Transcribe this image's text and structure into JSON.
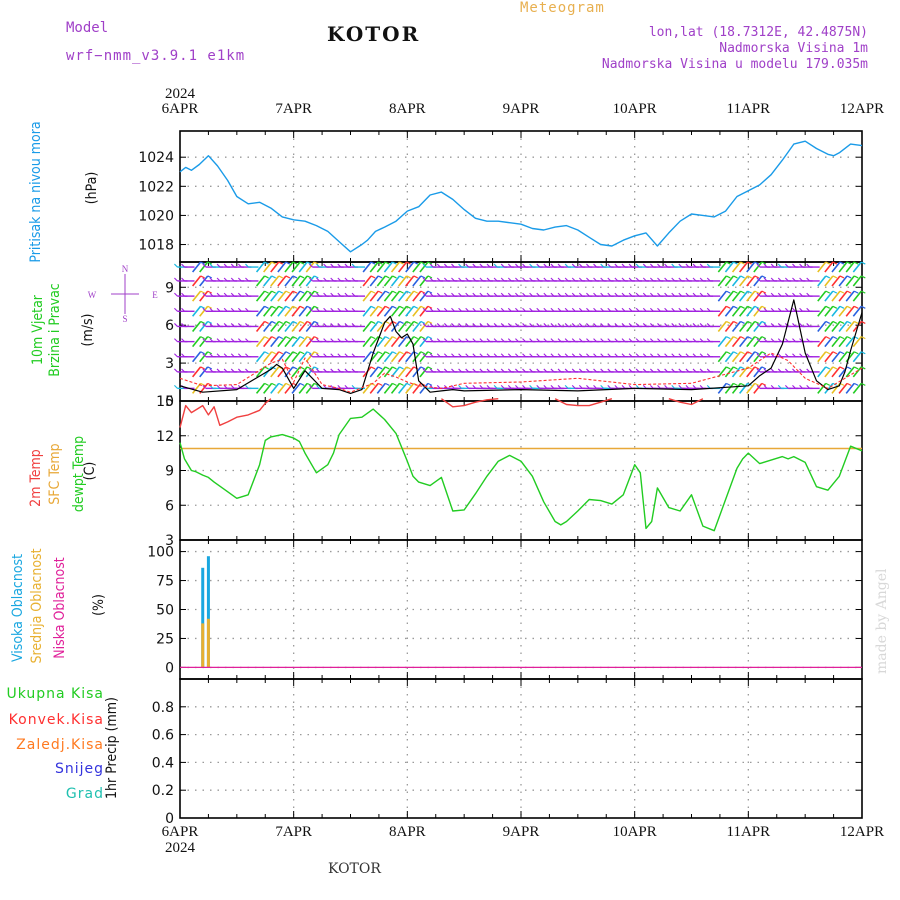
{
  "header": {
    "model_label": "Model",
    "model_name": "wrf−nmm_v3.9.1 e1km",
    "station": "KOTOR",
    "product": "Meteogram",
    "lonlat": "lon,lat (18.7312E, 42.4875N)",
    "elevation": "Nadmorska Visina 1m",
    "model_elevation": "Nadmorska Visina u modelu 179.035m"
  },
  "footer": {
    "station": "KOTOR",
    "credit": "made by Angel"
  },
  "colors": {
    "pressure": "#1a9be8",
    "wind_speed": "#000000",
    "gust": "#ff3030",
    "temp_2m": "#f04040",
    "temp_sfc": "#e8a838",
    "dewpoint": "#22cc22",
    "cloud_high": "#1aa7e0",
    "cloud_mid": "#e8b030",
    "cloud_low": "#e0209a",
    "precip_total": "#22cc22",
    "precip_conv": "#ff3030",
    "precip_frozen": "#ff7a20",
    "snow": "#3333dd",
    "graupel": "#20c0b0",
    "text_purple": "#a040c8",
    "text_orange": "#e8b050"
  },
  "chart_data": [
    {
      "type": "line",
      "panel": "pressure",
      "title": "",
      "ylabel": "(hPa)",
      "side_label": "Pritisak na nivou mora",
      "x_year": "2024",
      "x_ticks": [
        "6APR",
        "7APR",
        "8APR",
        "9APR",
        "10APR",
        "11APR",
        "12APR"
      ],
      "xlim_days": [
        0,
        6
      ],
      "ylim": [
        1016.8,
        1025.8
      ],
      "y_ticks": [
        "1018",
        "1020",
        "1022",
        "1024"
      ],
      "series": [
        {
          "x": [
            0,
            0.05,
            0.1,
            0.17,
            0.25,
            0.33,
            0.42,
            0.5,
            0.6,
            0.7,
            0.8,
            0.9,
            1.0,
            1.1,
            1.2,
            1.3,
            1.4,
            1.5,
            1.6,
            1.65,
            1.72,
            1.8,
            1.9,
            2.0,
            2.1,
            2.2,
            2.3,
            2.4,
            2.5,
            2.6,
            2.7,
            2.8,
            2.9,
            3.0,
            3.1,
            3.2,
            3.3,
            3.4,
            3.5,
            3.6,
            3.7,
            3.8,
            3.9,
            4.0,
            4.1,
            4.2,
            4.3,
            4.4,
            4.5,
            4.6,
            4.7,
            4.8,
            4.9,
            5.0,
            5.1,
            5.2,
            5.3,
            5.4,
            5.5,
            5.6,
            5.7,
            5.75,
            5.8,
            5.9,
            6.0
          ],
          "y": [
            1023.0,
            1023.3,
            1023.1,
            1023.5,
            1024.1,
            1023.4,
            1022.4,
            1021.3,
            1020.8,
            1020.9,
            1020.5,
            1019.9,
            1019.7,
            1019.6,
            1019.3,
            1018.9,
            1018.2,
            1017.5,
            1018.0,
            1018.3,
            1018.9,
            1019.2,
            1019.6,
            1020.3,
            1020.6,
            1021.4,
            1021.6,
            1021.1,
            1020.4,
            1019.8,
            1019.6,
            1019.6,
            1019.5,
            1019.4,
            1019.1,
            1019.0,
            1019.2,
            1019.3,
            1019.0,
            1018.5,
            1018.0,
            1017.9,
            1018.3,
            1018.6,
            1018.8,
            1017.9,
            1018.8,
            1019.6,
            1020.1,
            1020.0,
            1019.9,
            1020.3,
            1021.3,
            1021.7,
            1022.1,
            1022.8,
            1023.8,
            1024.9,
            1025.1,
            1024.6,
            1024.2,
            1024.1,
            1024.3,
            1024.9,
            1024.8
          ]
        }
      ]
    },
    {
      "type": "line",
      "panel": "wind",
      "ylabel": "(m/s)",
      "side_label_1": "10m Vjetar",
      "side_label_2": "Brzina i Pravac",
      "compass": {
        "n": "N",
        "s": "S",
        "e": "E",
        "w": "W"
      },
      "ylim": [
        0,
        11
      ],
      "y_ticks": [
        "0",
        "3",
        "6",
        "9"
      ],
      "series": [
        {
          "name": "speed",
          "x": [
            0,
            0.2,
            0.5,
            0.8,
            0.85,
            0.9,
            1.0,
            1.1,
            1.25,
            1.4,
            1.5,
            1.6,
            1.7,
            1.8,
            1.85,
            1.9,
            1.95,
            2.0,
            2.05,
            2.1,
            2.2,
            2.3,
            2.4,
            2.5,
            3.0,
            3.5,
            4.0,
            4.5,
            5.0,
            5.1,
            5.2,
            5.3,
            5.4,
            5.5,
            5.6,
            5.7,
            5.8,
            5.85,
            5.9,
            6.0
          ],
          "y": [
            1.2,
            0.7,
            0.9,
            2.5,
            2.9,
            2.6,
            1.0,
            2.4,
            1.0,
            0.9,
            0.6,
            0.9,
            3.8,
            6.2,
            6.7,
            5.5,
            5.0,
            5.3,
            4.5,
            1.6,
            0.7,
            0.8,
            0.9,
            0.8,
            0.9,
            0.8,
            1.0,
            0.9,
            1.2,
            2.0,
            2.6,
            4.5,
            8.0,
            3.8,
            1.6,
            0.9,
            1.2,
            2.3,
            4.0,
            7.0
          ]
        },
        {
          "name": "gust",
          "x": [
            0,
            0.2,
            0.5,
            0.8,
            0.9,
            1.0,
            1.1,
            1.25,
            1.4,
            1.5,
            1.7,
            1.8,
            1.9,
            2.0,
            2.1,
            2.3,
            2.5,
            3.0,
            3.5,
            4.0,
            4.5,
            5.0,
            5.2,
            5.35,
            5.5,
            5.7,
            5.85,
            6.0
          ],
          "y": [
            1.8,
            1.2,
            1.3,
            3.0,
            3.3,
            1.5,
            3.4,
            1.3,
            1.0,
            0.7,
            1.4,
            2.2,
            1.9,
            1.5,
            1.2,
            1.0,
            1.4,
            1.5,
            1.8,
            1.3,
            1.4,
            2.6,
            3.8,
            3.2,
            1.8,
            1.0,
            1.8,
            2.6
          ]
        }
      ]
    },
    {
      "type": "line",
      "panel": "temperature",
      "ylabel": "(C)",
      "side_labels": [
        "2m Temp",
        "SFC Temp",
        "dewpt Temp"
      ],
      "ylim": [
        3,
        15
      ],
      "y_ticks": [
        "3",
        "6",
        "9",
        "12",
        "15"
      ],
      "series": [
        {
          "name": "2m Temp",
          "x": [
            0,
            0.05,
            0.1,
            0.15,
            0.2,
            0.25,
            0.3,
            0.35,
            0.42,
            0.5,
            0.6,
            0.7,
            0.75,
            0.8
          ],
          "y": [
            12.7,
            14.6,
            14.0,
            14.3,
            14.6,
            13.8,
            14.5,
            12.9,
            13.2,
            13.6,
            13.8,
            14.2,
            14.8,
            15.2
          ]
        },
        {
          "name": "2m Temp segment 2",
          "x": [
            2.3,
            2.4,
            2.5,
            2.6,
            2.7,
            2.8
          ],
          "y": [
            15.2,
            14.5,
            14.6,
            14.9,
            15.1,
            15.2
          ]
        },
        {
          "name": "2m Temp segment 3",
          "x": [
            3.3,
            3.4,
            3.5,
            3.6,
            3.7,
            3.8
          ],
          "y": [
            15.2,
            14.7,
            14.6,
            14.6,
            14.9,
            15.2
          ]
        },
        {
          "name": "2m Temp segment 4",
          "x": [
            4.3,
            4.4,
            4.5,
            4.6
          ],
          "y": [
            15.2,
            14.9,
            14.7,
            15.2
          ]
        },
        {
          "name": "SFC Temp",
          "x": [
            0,
            6
          ],
          "y": [
            10.9,
            10.9
          ]
        },
        {
          "name": "dewpt Temp",
          "x": [
            0,
            0.04,
            0.1,
            0.14,
            0.2,
            0.25,
            0.3,
            0.4,
            0.5,
            0.6,
            0.7,
            0.75,
            0.8,
            0.9,
            1.0,
            1.05,
            1.1,
            1.2,
            1.3,
            1.35,
            1.4,
            1.5,
            1.6,
            1.7,
            1.8,
            1.9,
            2.0,
            2.05,
            2.1,
            2.2,
            2.3,
            2.4,
            2.5,
            2.6,
            2.7,
            2.8,
            2.9,
            3.0,
            3.1,
            3.2,
            3.3,
            3.35,
            3.4,
            3.5,
            3.6,
            3.7,
            3.8,
            3.9,
            4.0,
            4.05,
            4.1,
            4.15,
            4.2,
            4.3,
            4.4,
            4.5,
            4.6,
            4.7,
            4.8,
            4.9,
            4.95,
            5.0,
            5.1,
            5.2,
            5.3,
            5.35,
            5.4,
            5.5,
            5.6,
            5.7,
            5.8,
            5.9,
            6.0
          ],
          "y": [
            11.4,
            10.0,
            9.0,
            8.9,
            8.6,
            8.4,
            8.0,
            7.3,
            6.6,
            6.9,
            9.5,
            11.6,
            11.9,
            12.1,
            11.8,
            11.5,
            10.5,
            8.8,
            9.5,
            10.5,
            12.1,
            13.5,
            13.6,
            14.3,
            13.4,
            12.2,
            9.8,
            8.5,
            8.0,
            7.7,
            8.4,
            5.5,
            5.6,
            7.0,
            8.5,
            9.8,
            10.3,
            9.8,
            8.5,
            6.3,
            4.6,
            4.3,
            4.6,
            5.5,
            6.5,
            6.4,
            6.1,
            6.9,
            9.5,
            8.8,
            4.0,
            4.6,
            7.5,
            5.8,
            5.5,
            6.9,
            4.2,
            3.8,
            6.5,
            9.2,
            10.0,
            10.5,
            9.6,
            9.9,
            10.2,
            10.0,
            10.2,
            9.7,
            7.6,
            7.3,
            8.5,
            11.1,
            10.7
          ]
        }
      ]
    },
    {
      "type": "bar",
      "panel": "cloud",
      "ylabel": "(%)",
      "side_labels": [
        "Visoka Oblacnost",
        "Srednja Oblacnost",
        "Niska Oblacnost"
      ],
      "ylim": [
        -10,
        110
      ],
      "y_ticks": [
        "0",
        "25",
        "50",
        "75",
        "100"
      ],
      "series": [
        {
          "name": "Visoka Oblacnost",
          "x": [
            0.2,
            0.25
          ],
          "values": [
            86,
            96
          ]
        },
        {
          "name": "Srednja Oblacnost",
          "x": [
            0.2,
            0.25
          ],
          "values": [
            38,
            42
          ]
        },
        {
          "name": "Niska Oblacnost",
          "x": [
            0,
            6
          ],
          "values": [
            0,
            0
          ]
        }
      ]
    },
    {
      "type": "line",
      "panel": "precip",
      "ylabel": "1hr Precip (mm)",
      "side_labels": [
        "Ukupna Kisa",
        "Konvek.Kisa",
        "Zaledj.Kisa",
        "Snijeg",
        "Grad"
      ],
      "ylim": [
        0,
        1.0
      ],
      "y_ticks": [
        "0",
        "0.2",
        "0.4",
        "0.6",
        "0.8"
      ],
      "series": []
    }
  ]
}
